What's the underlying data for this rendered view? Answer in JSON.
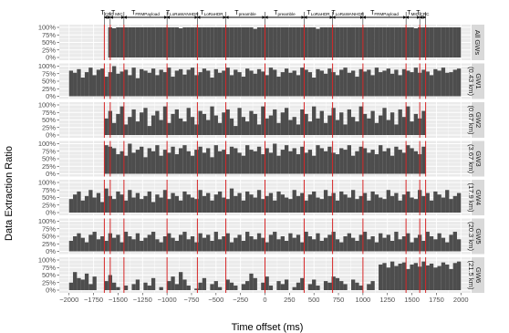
{
  "chart_data": {
    "type": "bar",
    "ylabel": "Data Extraction Ratio",
    "xlabel": "Time offset (ms)",
    "xlim": [
      -2100,
      2100
    ],
    "ylim": [
      0,
      100
    ],
    "x_ticks": [
      -2000,
      -1750,
      -1500,
      -1250,
      -1000,
      -750,
      -500,
      -250,
      0,
      250,
      500,
      750,
      1000,
      1250,
      1500,
      1750,
      2000
    ],
    "x_tick_labels": [
      "−2000",
      "−1750",
      "−1500",
      "−1250",
      "−1000",
      "−750",
      "−500",
      "−250",
      "0",
      "250",
      "500",
      "750",
      "1000",
      "1250",
      "1500",
      "1750",
      "2000"
    ],
    "y_ticks": [
      0,
      25,
      50,
      75,
      100
    ],
    "y_tick_labels": [
      "0%",
      "25%",
      "50%",
      "75%",
      "100%"
    ],
    "bin_width_ms": 40,
    "marker_color": "#d62728",
    "bar_color": "#4d4d4d",
    "panel_bg": "#ebebeb",
    "strip_bg": "#d9d9d9",
    "vertical_markers_ms": [
      -1640,
      -1580,
      -1440,
      -1000,
      -690,
      -400,
      0,
      400,
      690,
      1000,
      1440,
      1580,
      1640
    ],
    "interval_annotations": [
      {
        "label": "T",
        "sub": "CRC",
        "from": -1640,
        "to": -1580
      },
      {
        "label": "T",
        "sub": "MIC",
        "from": -1580,
        "to": -1440
      },
      {
        "label": "T",
        "sub": "FRMPayload",
        "from": -1440,
        "to": -1000
      },
      {
        "label": "T",
        "sub": "LoRaWANHDR",
        "from": -1000,
        "to": -690
      },
      {
        "label": "T",
        "sub": "LoRaHDR",
        "from": -690,
        "to": -400
      },
      {
        "label": "T",
        "sub": "preamble",
        "from": -400,
        "to": 0
      },
      {
        "label": "T",
        "sub": "preamble",
        "from": 0,
        "to": 400
      },
      {
        "label": "T",
        "sub": "LoRaHDR",
        "from": 400,
        "to": 690
      },
      {
        "label": "T",
        "sub": "LoRaWANHDR",
        "from": 690,
        "to": 1000
      },
      {
        "label": "T",
        "sub": "FRMPayload",
        "from": 1000,
        "to": 1440
      },
      {
        "label": "T",
        "sub": "MIC",
        "from": 1440,
        "to": 1580
      },
      {
        "label": "T",
        "sub": "CRC",
        "from": 1580,
        "to": 1640
      }
    ],
    "panels": [
      {
        "name": "All GWs",
        "start_ms": -1600,
        "end_ms": 2000,
        "values": [
          100,
          97,
          100,
          100,
          100,
          100,
          100,
          100,
          100,
          100,
          100,
          100,
          100,
          100,
          100,
          100,
          100,
          100,
          97,
          100,
          100,
          100,
          100,
          100,
          100,
          100,
          100,
          100,
          100,
          100,
          100,
          100,
          100,
          100,
          100,
          100,
          100,
          95,
          100,
          100,
          100,
          100,
          100,
          100,
          100,
          100,
          100,
          100,
          100,
          100,
          100,
          100,
          100,
          95,
          100,
          100,
          100,
          100,
          100,
          100,
          100,
          100,
          100,
          100,
          100,
          100,
          100,
          100,
          100,
          100,
          100,
          100,
          100,
          100,
          100,
          100,
          100,
          100,
          97,
          100,
          100,
          100,
          100,
          100,
          100,
          100,
          100,
          100,
          100,
          100,
          100
        ]
      },
      {
        "name": "GW1",
        "sub": "(0.43 km)",
        "start_ms": -2000,
        "end_ms": 2000,
        "values": [
          85,
          78,
          90,
          62,
          80,
          95,
          70,
          88,
          92,
          65,
          80,
          100,
          75,
          82,
          88,
          70,
          95,
          60,
          90,
          85,
          78,
          92,
          70,
          88,
          80,
          95,
          65,
          85,
          90,
          72,
          88,
          95,
          70,
          80,
          92,
          85,
          62,
          90,
          78,
          85,
          95,
          70,
          88,
          80,
          65,
          92,
          85,
          75,
          90,
          82,
          70,
          95,
          88,
          65,
          80,
          92,
          78,
          85,
          70,
          95,
          88,
          80,
          62,
          90,
          85,
          75,
          92,
          80,
          70,
          88,
          95,
          78,
          85,
          65,
          90,
          82,
          88,
          70,
          95,
          80,
          85,
          92,
          75,
          88,
          70,
          90,
          85,
          80,
          95,
          78,
          88,
          82,
          70,
          90,
          85,
          95,
          78,
          80,
          88,
          92
        ]
      },
      {
        "name": "GW2",
        "sub": "(0.67 km)",
        "start_ms": -1640,
        "end_ms": 2000,
        "values": [
          55,
          80,
          40,
          70,
          95,
          35,
          60,
          85,
          45,
          75,
          90,
          30,
          65,
          80,
          50,
          95,
          40,
          70,
          85,
          55,
          45,
          90,
          60,
          35,
          80,
          70,
          50,
          95,
          65,
          40,
          75,
          85,
          55,
          30,
          90,
          60,
          45,
          80,
          70,
          35,
          95,
          55,
          65,
          85,
          40,
          75,
          90,
          50,
          60,
          35,
          85,
          70,
          45,
          95,
          55,
          80,
          40,
          65,
          90,
          50,
          75,
          35,
          85,
          60,
          45,
          95,
          70,
          55,
          80,
          40,
          65,
          90,
          50,
          75,
          35,
          85,
          60,
          95,
          45,
          70,
          55,
          80
        ]
      },
      {
        "name": "GW3",
        "sub": "(3.67 km)",
        "start_ms": -1640,
        "end_ms": 2000,
        "values": [
          95,
          90,
          85,
          65,
          75,
          60,
          100,
          70,
          80,
          90,
          55,
          85,
          75,
          95,
          60,
          80,
          70,
          90,
          65,
          85,
          95,
          75,
          60,
          80,
          90,
          70,
          85,
          55,
          95,
          75,
          80,
          65,
          90,
          85,
          70,
          60,
          95,
          80,
          75,
          90,
          65,
          85,
          70,
          100,
          60,
          80,
          95,
          75,
          85,
          65,
          90,
          70,
          80,
          60,
          95,
          85,
          75,
          90,
          70,
          65,
          85,
          80,
          95,
          60,
          75,
          90,
          85,
          70,
          80,
          65,
          95,
          75,
          85,
          60,
          90,
          80,
          70,
          95,
          85,
          75,
          65,
          90
        ]
      },
      {
        "name": "GW4",
        "sub": "(17.9 km)",
        "start_ms": -2000,
        "end_ms": 2000,
        "values": [
          45,
          60,
          70,
          40,
          55,
          75,
          50,
          65,
          35,
          80,
          55,
          45,
          70,
          60,
          40,
          75,
          50,
          65,
          45,
          55,
          70,
          35,
          60,
          50,
          75,
          45,
          65,
          55,
          40,
          70,
          60,
          50,
          45,
          75,
          55,
          65,
          40,
          60,
          70,
          50,
          45,
          80,
          55,
          65,
          40,
          70,
          60,
          50,
          75,
          45,
          55,
          65,
          40,
          70,
          60,
          50,
          45,
          75,
          55,
          65,
          40,
          60,
          70,
          50,
          45,
          75,
          55,
          65,
          40,
          70,
          60,
          50,
          75,
          45,
          55,
          65,
          40,
          70,
          60,
          50,
          45,
          75,
          55,
          65,
          40,
          60,
          70,
          50,
          45,
          75,
          55,
          65,
          40,
          70,
          60,
          50,
          75,
          45,
          55,
          65
        ]
      },
      {
        "name": "GW5",
        "sub": "(20.3 km)",
        "start_ms": -2000,
        "end_ms": 2000,
        "values": [
          35,
          50,
          60,
          45,
          30,
          55,
          65,
          40,
          50,
          35,
          60,
          45,
          55,
          30,
          65,
          50,
          40,
          60,
          35,
          45,
          55,
          65,
          40,
          30,
          50,
          60,
          45,
          35,
          55,
          65,
          40,
          50,
          30,
          60,
          45,
          55,
          35,
          65,
          40,
          50,
          60,
          30,
          45,
          55,
          35,
          65,
          50,
          40,
          60,
          45,
          30,
          55,
          65,
          40,
          50,
          35,
          60,
          45,
          55,
          30,
          65,
          50,
          40,
          60,
          35,
          45,
          55,
          65,
          40,
          30,
          50,
          60,
          45,
          35,
          55,
          65,
          40,
          50,
          30,
          60,
          45,
          55,
          35,
          65,
          40,
          50,
          60,
          30,
          45,
          55,
          35,
          65,
          50,
          40,
          60,
          45,
          30,
          55,
          65,
          40
        ]
      },
      {
        "name": "GW6",
        "sub": "(21.5 km)",
        "start_ms": -2000,
        "end_ms": 2000,
        "values": [
          25,
          60,
          40,
          35,
          55,
          20,
          45,
          0,
          0,
          30,
          50,
          25,
          10,
          0,
          15,
          0,
          20,
          35,
          0,
          25,
          15,
          40,
          0,
          10,
          0,
          30,
          45,
          20,
          60,
          35,
          15,
          0,
          5,
          25,
          40,
          0,
          20,
          30,
          10,
          0,
          35,
          25,
          15,
          0,
          20,
          30,
          55,
          40,
          0,
          25,
          45,
          15,
          0,
          30,
          20,
          35,
          0,
          10,
          25,
          40,
          0,
          20,
          35,
          15,
          0,
          30,
          25,
          45,
          40,
          30,
          20,
          0,
          35,
          25,
          15,
          0,
          20,
          30,
          0,
          85,
          90,
          75,
          95,
          80,
          88,
          92,
          70,
          85,
          90,
          78,
          95,
          82,
          88,
          75,
          80,
          92,
          85,
          70,
          90,
          95
        ]
      }
    ]
  }
}
